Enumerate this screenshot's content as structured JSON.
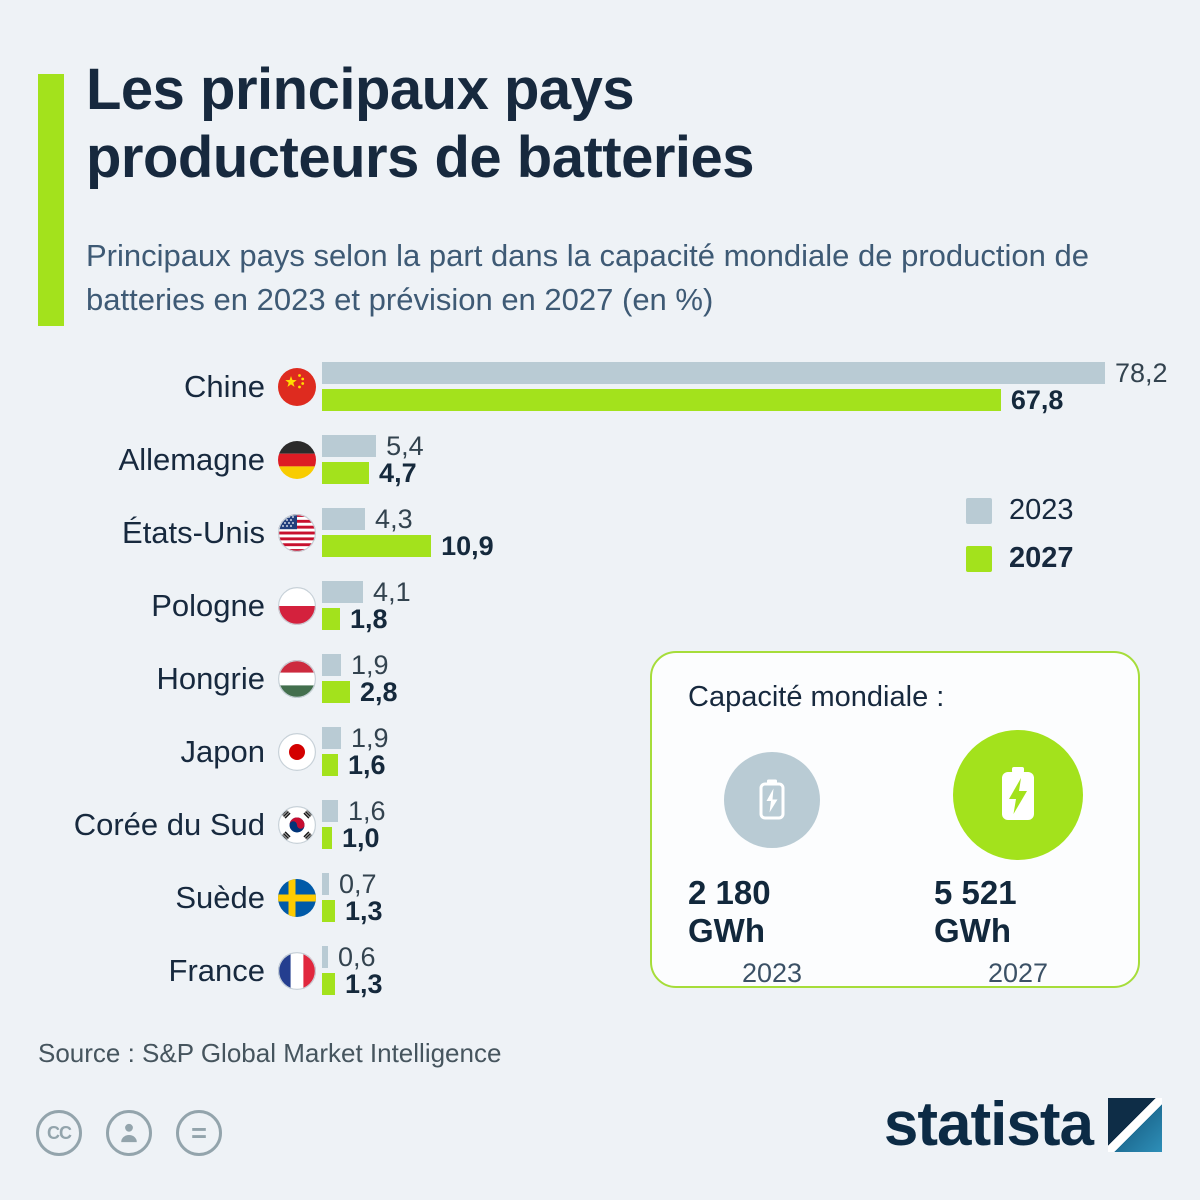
{
  "header": {
    "title_line1": "Les principaux pays",
    "title_line2": "producteurs de batteries",
    "subtitle": "Principaux pays selon la part dans la capacité mondiale de production de batteries en 2023 et prévision en 2027 (en %)"
  },
  "chart_data": {
    "type": "bar",
    "orientation": "horizontal",
    "title": "Les principaux pays producteurs de batteries",
    "unit": "%",
    "xlim": [
      0,
      78.2
    ],
    "grid": false,
    "legend_position": "right",
    "categories": [
      "Chine",
      "Allemagne",
      "États-Unis",
      "Pologne",
      "Hongrie",
      "Japon",
      "Corée du Sud",
      "Suède",
      "France"
    ],
    "flags": [
      "china",
      "germany",
      "usa",
      "poland",
      "hungary",
      "japan",
      "south-korea",
      "sweden",
      "france"
    ],
    "series": [
      {
        "name": "2023",
        "color": "#b9cbd4",
        "values": [
          78.2,
          5.4,
          4.3,
          4.1,
          1.9,
          1.9,
          1.6,
          0.7,
          0.6
        ]
      },
      {
        "name": "2027",
        "color": "#a3e21c",
        "values": [
          67.8,
          4.7,
          10.9,
          1.8,
          2.8,
          1.6,
          1.0,
          1.3,
          1.3
        ]
      }
    ],
    "value_labels": [
      [
        "78,2",
        "5,4",
        "4,3",
        "4,1",
        "1,9",
        "1,9",
        "1,6",
        "0,7",
        "0,6"
      ],
      [
        "67,8",
        "4,7",
        "10,9",
        "1,8",
        "2,8",
        "1,6",
        "1,0",
        "1,3",
        "1,3"
      ]
    ]
  },
  "legend": {
    "items": [
      {
        "label": "2023",
        "color": "#b9cbd4"
      },
      {
        "label": "2027",
        "color": "#a3e21c"
      }
    ]
  },
  "capacity_card": {
    "title": "Capacité mondiale :",
    "items": [
      {
        "value": "2 180 GWh",
        "year": "2023",
        "icon": "battery-outline"
      },
      {
        "value": "5 521 GWh",
        "year": "2027",
        "icon": "battery-filled"
      }
    ]
  },
  "source": "Source : S&P Global Market Intelligence",
  "footer": {
    "brand": "statista",
    "license_icons": [
      "cc",
      "attribution",
      "equals"
    ],
    "cc_label": "CC",
    "eq_label": "="
  },
  "colors": {
    "background": "#eef2f6",
    "accent_green": "#a3e21c",
    "bar_gray": "#b9cbd4",
    "title_navy": "#17293e",
    "subtitle_slate": "#3e5a75"
  }
}
